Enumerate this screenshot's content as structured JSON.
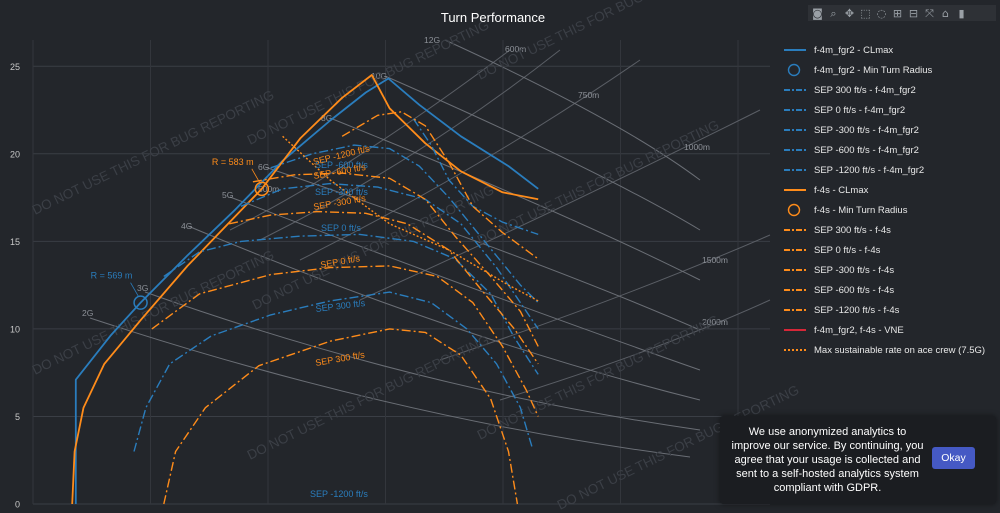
{
  "title": "Turn Performance",
  "watermark": "DO NOT USE THIS FOR BUG REPORTING",
  "modebar": [
    "camera-icon",
    "zoom-icon",
    "pan-icon",
    "box-select-icon",
    "lasso-icon",
    "zoom-in-icon",
    "zoom-out-icon",
    "autoscale-icon",
    "home-icon",
    "logo-icon"
  ],
  "cookie": {
    "text": "We use anonymized analytics to improve our service. By continuing, you agree that your usage is collected and sent to a self-hosted analytics system compliant with GDPR.",
    "button": "Okay"
  },
  "legend": [
    {
      "label": "f-4m_fgr2 - CLmax",
      "color": "#2a7dbd",
      "style": "solid"
    },
    {
      "label": "f-4m_fgr2 - Min Turn Radius",
      "color": "#2a7dbd",
      "style": "circle"
    },
    {
      "label": "SEP 300 ft/s - f-4m_fgr2",
      "color": "#2a7dbd",
      "style": "dashdot"
    },
    {
      "label": "SEP 0 ft/s - f-4m_fgr2",
      "color": "#2a7dbd",
      "style": "dashdot"
    },
    {
      "label": "SEP -300 ft/s - f-4m_fgr2",
      "color": "#2a7dbd",
      "style": "dashdot"
    },
    {
      "label": "SEP -600 ft/s - f-4m_fgr2",
      "color": "#2a7dbd",
      "style": "dashdot"
    },
    {
      "label": "SEP -1200 ft/s - f-4m_fgr2",
      "color": "#2a7dbd",
      "style": "dashdot"
    },
    {
      "label": "f-4s - CLmax",
      "color": "#ff8c1a",
      "style": "solid"
    },
    {
      "label": "f-4s - Min Turn Radius",
      "color": "#ff8c1a",
      "style": "circle"
    },
    {
      "label": "SEP 300 ft/s - f-4s",
      "color": "#ff8c1a",
      "style": "dashdot"
    },
    {
      "label": "SEP 0 ft/s - f-4s",
      "color": "#ff8c1a",
      "style": "dashdot"
    },
    {
      "label": "SEP -300 ft/s - f-4s",
      "color": "#ff8c1a",
      "style": "dashdot"
    },
    {
      "label": "SEP -600 ft/s - f-4s",
      "color": "#ff8c1a",
      "style": "dashdot"
    },
    {
      "label": "SEP -1200 ft/s - f-4s",
      "color": "#ff8c1a",
      "style": "dashdot"
    },
    {
      "label": "f-4m_fgr2, f-4s - VNE",
      "color": "#d62738",
      "style": "solid"
    },
    {
      "label": "Max sustainable rate on ace crew (7.5G)",
      "color": "#ff8c1a",
      "style": "dotted"
    }
  ],
  "chart_data": {
    "type": "line",
    "title": "Turn Performance",
    "xlim": [
      0,
      1240
    ],
    "ylim": [
      0,
      26.5
    ],
    "yticks": [
      0,
      5,
      10,
      15,
      20,
      25
    ],
    "grid": true,
    "legend_position": "right",
    "radius_labels": [
      "500m",
      "600m",
      "750m",
      "1000m",
      "1500m",
      "2000m"
    ],
    "g_labels": [
      "2G",
      "3G",
      "4G",
      "5G",
      "6G",
      "8G",
      "10G",
      "12G"
    ],
    "annotations": [
      {
        "text": "R = 569 m",
        "color": "#2a7dbd",
        "x": 181,
        "y": 11.5
      },
      {
        "text": "R = 583 m",
        "color": "#ff8c1a",
        "x": 385,
        "y": 18.0
      }
    ],
    "series": [
      {
        "name": "f-4m_fgr2 - CLmax",
        "color": "#2a7dbd",
        "dash": "solid",
        "points": [
          [
            72,
            0
          ],
          [
            72,
            7.1
          ],
          [
            130,
            9.6
          ],
          [
            181,
            11.5
          ],
          [
            260,
            14.2
          ],
          [
            340,
            16.8
          ],
          [
            420,
            19.6
          ],
          [
            500,
            21.9
          ],
          [
            560,
            23.5
          ],
          [
            598,
            24.3
          ],
          [
            650,
            22.8
          ],
          [
            720,
            21.0
          ],
          [
            800,
            19.3
          ],
          [
            850,
            18.0
          ]
        ]
      },
      {
        "name": "f-4s - CLmax",
        "color": "#ff8c1a",
        "dash": "solid",
        "points": [
          [
            66,
            0
          ],
          [
            70,
            3.0
          ],
          [
            85,
            5.5
          ],
          [
            120,
            8.0
          ],
          [
            181,
            10.5
          ],
          [
            260,
            13.6
          ],
          [
            385,
            18.0
          ],
          [
            450,
            20.9
          ],
          [
            520,
            23.2
          ],
          [
            570,
            24.5
          ],
          [
            600,
            22.6
          ],
          [
            660,
            20.6
          ],
          [
            720,
            19.0
          ],
          [
            790,
            17.8
          ],
          [
            850,
            17.4
          ]
        ]
      },
      {
        "name": "SEP 300 ft/s - f-4m_fgr2",
        "color": "#2a7dbd",
        "dash": "dashdot",
        "points": [
          [
            170,
            3.0
          ],
          [
            190,
            5.5
          ],
          [
            230,
            8.0
          ],
          [
            300,
            9.6
          ],
          [
            400,
            10.8
          ],
          [
            500,
            11.6
          ],
          [
            600,
            12.1
          ],
          [
            670,
            11.5
          ],
          [
            730,
            10.0
          ],
          [
            780,
            8.0
          ],
          [
            820,
            5.5
          ],
          [
            840,
            3.2
          ]
        ]
      },
      {
        "name": "SEP 0 ft/s - f-4m_fgr2",
        "color": "#2a7dbd",
        "dash": "dashdot",
        "points": [
          [
            220,
            13.0
          ],
          [
            280,
            14.4
          ],
          [
            350,
            15.0
          ],
          [
            450,
            15.3
          ],
          [
            550,
            15.4
          ],
          [
            640,
            15.0
          ],
          [
            710,
            14.0
          ],
          [
            770,
            12.0
          ],
          [
            810,
            9.5
          ],
          [
            850,
            7.4
          ]
        ]
      },
      {
        "name": "SEP -300 ft/s - f-4m_fgr2",
        "color": "#2a7dbd",
        "dash": "dashdot",
        "points": [
          [
            350,
            17.0
          ],
          [
            420,
            18.0
          ],
          [
            500,
            18.3
          ],
          [
            580,
            18.1
          ],
          [
            660,
            17.4
          ],
          [
            720,
            16.0
          ],
          [
            780,
            13.5
          ],
          [
            830,
            11.0
          ],
          [
            850,
            10.0
          ]
        ]
      },
      {
        "name": "SEP -600 ft/s - f-4m_fgr2",
        "color": "#2a7dbd",
        "dash": "dashdot",
        "points": [
          [
            400,
            19.2
          ],
          [
            470,
            20.0
          ],
          [
            540,
            20.5
          ],
          [
            600,
            20.3
          ],
          [
            650,
            19.3
          ],
          [
            700,
            17.5
          ],
          [
            760,
            15.0
          ],
          [
            820,
            12.5
          ],
          [
            850,
            11.5
          ]
        ]
      },
      {
        "name": "SEP -1200 ft/s - f-4m_fgr2",
        "color": "#2a7dbd",
        "dash": "dashdot",
        "points": [
          [
            640,
            22.0
          ],
          [
            670,
            20.5
          ],
          [
            700,
            18.5
          ],
          [
            740,
            17.0
          ],
          [
            790,
            16.1
          ],
          [
            850,
            15.4
          ]
        ]
      },
      {
        "name": "SEP 300 ft/s - f-4s",
        "color": "#ff8c1a",
        "dash": "dashdot",
        "points": [
          [
            220,
            0
          ],
          [
            240,
            3.0
          ],
          [
            290,
            5.5
          ],
          [
            380,
            7.9
          ],
          [
            500,
            9.3
          ],
          [
            600,
            10.0
          ],
          [
            660,
            9.8
          ],
          [
            720,
            8.5
          ],
          [
            770,
            6.0
          ],
          [
            800,
            3.0
          ],
          [
            815,
            0
          ]
        ]
      },
      {
        "name": "SEP 0 ft/s - f-4s",
        "color": "#ff8c1a",
        "dash": "dashdot",
        "points": [
          [
            200,
            10.0
          ],
          [
            280,
            12.0
          ],
          [
            400,
            13.1
          ],
          [
            500,
            13.5
          ],
          [
            600,
            13.6
          ],
          [
            680,
            13.0
          ],
          [
            740,
            11.5
          ],
          [
            790,
            9.0
          ],
          [
            830,
            6.5
          ],
          [
            850,
            5.0
          ]
        ]
      },
      {
        "name": "SEP -300 ft/s - f-4s",
        "color": "#ff8c1a",
        "dash": "dashdot",
        "points": [
          [
            330,
            16.0
          ],
          [
            400,
            16.5
          ],
          [
            480,
            16.7
          ],
          [
            560,
            16.6
          ],
          [
            630,
            16.0
          ],
          [
            700,
            14.5
          ],
          [
            760,
            12.0
          ],
          [
            810,
            10.0
          ],
          [
            850,
            8.0
          ]
        ]
      },
      {
        "name": "SEP -600 ft/s - f-4s",
        "color": "#ff8c1a",
        "dash": "dashdot",
        "points": [
          [
            370,
            18.4
          ],
          [
            440,
            18.8
          ],
          [
            520,
            18.9
          ],
          [
            600,
            18.6
          ],
          [
            660,
            17.4
          ],
          [
            710,
            15.3
          ],
          [
            770,
            13.0
          ],
          [
            820,
            11.0
          ],
          [
            850,
            9.0
          ]
        ]
      },
      {
        "name": "SEP -1200 ft/s - f-4s",
        "color": "#ff8c1a",
        "dash": "dashdot",
        "points": [
          [
            520,
            21.0
          ],
          [
            580,
            22.2
          ],
          [
            620,
            22.4
          ],
          [
            660,
            21.6
          ],
          [
            700,
            19.5
          ],
          [
            740,
            17.0
          ],
          [
            790,
            15.5
          ],
          [
            850,
            14.0
          ]
        ]
      },
      {
        "name": "Max sustainable rate on ace crew (7.5G)",
        "color": "#ff8c1a",
        "dash": "dotted",
        "points": [
          [
            420,
            21.0
          ],
          [
            500,
            18.5
          ],
          [
            600,
            16.0
          ],
          [
            700,
            14.5
          ],
          [
            800,
            12.5
          ],
          [
            850,
            11.6
          ]
        ]
      }
    ],
    "markers": [
      {
        "name": "f-4m_fgr2 - Min Turn Radius",
        "color": "#2a7dbd",
        "x": 181,
        "y": 11.5
      },
      {
        "name": "f-4s - Min Turn Radius",
        "color": "#ff8c1a",
        "x": 385,
        "y": 18.0
      }
    ],
    "sep_labels": [
      {
        "text": "SEP 300 ft/s",
        "color": "#2a7dbd",
        "x": 400,
        "y": 10.9
      },
      {
        "text": "SEP 0 ft/s",
        "color": "#2a7dbd",
        "x": 400,
        "y": 15.4
      },
      {
        "text": "SEP -300 ft/s",
        "color": "#2a7dbd",
        "x": 400,
        "y": 18.5
      },
      {
        "text": "SEP -600 ft/s",
        "color": "#2a7dbd",
        "x": 400,
        "y": 19.3
      },
      {
        "text": "SEP -1200 ft/s",
        "color": "#2a7dbd",
        "x": 400,
        "y": 0.5
      },
      {
        "text": "SEP 300 ft/s",
        "color": "#ff8c1a",
        "x": 400,
        "y": 8.0
      },
      {
        "text": "SEP 0 ft/s",
        "color": "#ff8c1a",
        "x": 400,
        "y": 13.3
      },
      {
        "text": "SEP -300 ft/s",
        "color": "#ff8c1a",
        "x": 400,
        "y": 16.8
      },
      {
        "text": "SEP -600 ft/s",
        "color": "#ff8c1a",
        "x": 400,
        "y": 18.9
      },
      {
        "text": "SEP -1200 ft/s",
        "color": "#ff8c1a",
        "x": 400,
        "y": 20.3
      }
    ]
  }
}
